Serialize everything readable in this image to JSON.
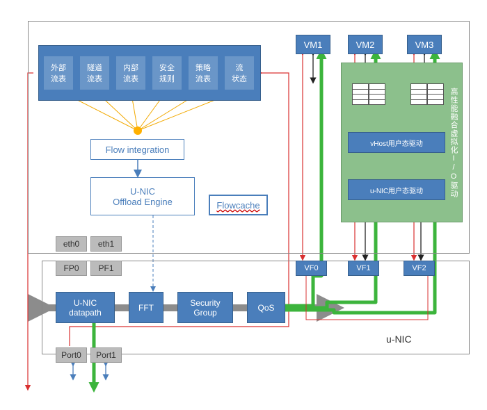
{
  "colors": {
    "blue": "#4a7ebb",
    "blue_border": "#365f8c",
    "gray": "#bbb",
    "green_box": "#8cc08c",
    "orange_line": "#f2a900",
    "orange_sun": "#ffb000",
    "red_line": "#d93030",
    "green_line": "#3cb43c",
    "black_line": "#222",
    "gray_arrow": "#8c8c8c",
    "blue_text": "#4a7ebb"
  },
  "line_widths": {
    "thin": 1,
    "green_thick": 5,
    "gray_thick": 10
  },
  "upper": {
    "flow_header": {
      "items": [
        "外部\n流表",
        "隧道\n流表",
        "内部\n流表",
        "安全\n规则",
        "策略\n流表",
        "流\n状态"
      ]
    },
    "flow_integration": "Flow integration",
    "offload": "U-NIC\nOffload Engine",
    "flowcache": "Flowcache",
    "eth": [
      "eth0",
      "eth1"
    ]
  },
  "vms": [
    "VM1",
    "VM2",
    "VM3"
  ],
  "right_panel": {
    "title": "高性能融合虚拟化I/O驱动",
    "vhost": "vHost用户态驱动",
    "unic": "u-NIC用户态驱动"
  },
  "lower": {
    "pf": [
      "FP0",
      "PF1"
    ],
    "vf": [
      "VF0",
      "VF1",
      "VF2"
    ],
    "pipeline": [
      "U-NIC\ndatapath",
      "FFT",
      "Security\nGroup",
      "QoS"
    ],
    "ports": [
      "Port0",
      "Port1"
    ],
    "label": "u-NIC"
  }
}
